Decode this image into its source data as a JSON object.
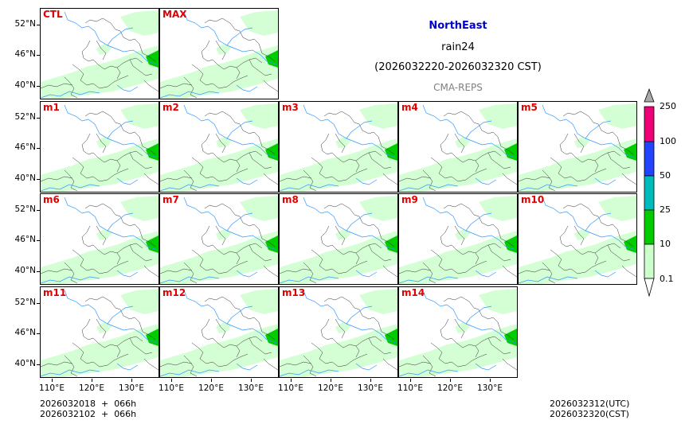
{
  "title": {
    "region": "NorthEast",
    "variable": "rain24",
    "period": "(2026032220-2026032320 CST)",
    "model": "CMA-REPS"
  },
  "panels": [
    {
      "label": "CTL"
    },
    {
      "label": "MAX"
    },
    {
      "label": "m1"
    },
    {
      "label": "m2"
    },
    {
      "label": "m3"
    },
    {
      "label": "m4"
    },
    {
      "label": "m5"
    },
    {
      "label": "m6"
    },
    {
      "label": "m7"
    },
    {
      "label": "m8"
    },
    {
      "label": "m9"
    },
    {
      "label": "m10"
    },
    {
      "label": "m11"
    },
    {
      "label": "m12"
    },
    {
      "label": "m13"
    },
    {
      "label": "m14"
    }
  ],
  "axes": {
    "lat_labels": [
      "52°N",
      "46°N",
      "40°N"
    ],
    "lon_labels": [
      "110°E",
      "120°E",
      "130°E"
    ]
  },
  "colorbar": {
    "levels": [
      "0.1",
      "10",
      "25",
      "50",
      "100",
      "250"
    ],
    "colors": [
      "#ccffcc",
      "#00cc00",
      "#00bbbb",
      "#2244ff",
      "#ee0077",
      "#aaaaaa"
    ]
  },
  "footer": {
    "init_line1": "2026032018  +  066h",
    "init_line2": "2026032102  +  066h",
    "valid_utc": "2026032312(UTC)",
    "valid_cst": "2026032320(CST)"
  },
  "colors": {
    "river": "#3399ff",
    "border": "#333333",
    "light_rain": "#ccffcc",
    "moderate_rain": "#00cc00",
    "label_red": "#e00000",
    "region_title": "#0000cc"
  }
}
